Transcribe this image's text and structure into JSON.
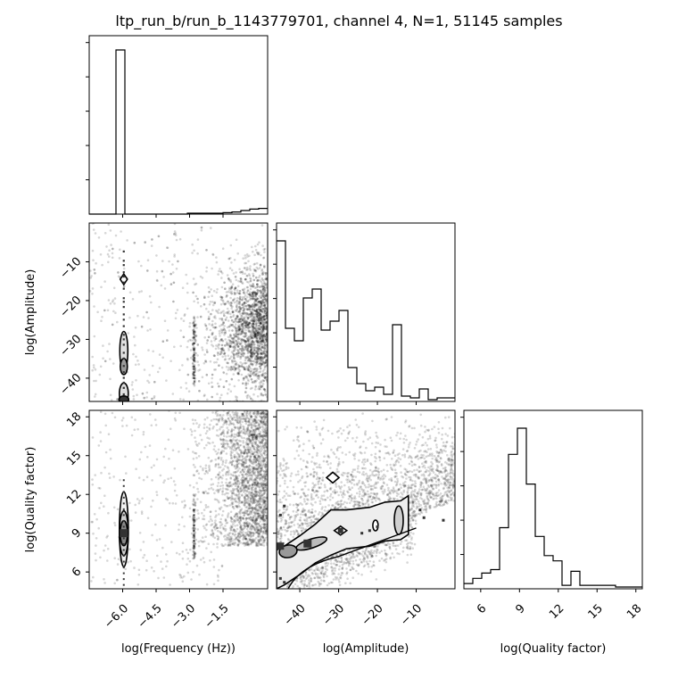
{
  "chart_data": {
    "type": "corner",
    "title": "ltp_run_b/run_b_1143779701, channel 4, N=1, 51145 samples",
    "parameters": [
      {
        "label": "log(Frequency (Hz))",
        "range": [
          -7.5,
          0.5
        ],
        "ticks": [
          -6.0,
          -4.5,
          -3.0,
          -1.5
        ],
        "tick_labels": [
          "−6.0",
          "−4.5",
          "−3.0",
          "−1.5"
        ]
      },
      {
        "label": "log(Amplitude)",
        "range": [
          -46,
          0
        ],
        "ticks": [
          -40,
          -30,
          -20,
          -10
        ],
        "tick_labels": [
          "−40",
          "−30",
          "−20",
          "−10"
        ]
      },
      {
        "label": "log(Quality factor)",
        "range": [
          4.7,
          18.5
        ],
        "ticks": [
          6,
          9,
          12,
          15,
          18
        ],
        "tick_labels": [
          "6",
          "9",
          "12",
          "15",
          "18"
        ]
      }
    ],
    "histograms": [
      {
        "parameter": "log(Frequency (Hz))",
        "bin_edges": [
          -7.5,
          -7.1,
          -6.7,
          -6.3,
          -5.9,
          -5.5,
          -5.1,
          -4.7,
          -4.3,
          -3.9,
          -3.5,
          -3.1,
          -2.7,
          -2.3,
          -1.9,
          -1.5,
          -1.1,
          -0.7,
          -0.3,
          0.1,
          0.5
        ],
        "counts": [
          0,
          0,
          0,
          0.92,
          0,
          0,
          0,
          0,
          0,
          0,
          0,
          0.005,
          0.005,
          0.005,
          0.005,
          0.008,
          0.012,
          0.02,
          0.028,
          0.032
        ]
      },
      {
        "parameter": "log(Amplitude)",
        "bin_edges": [
          -46,
          -43.7,
          -41.4,
          -39.1,
          -36.8,
          -34.5,
          -32.2,
          -29.9,
          -27.6,
          -25.3,
          -23,
          -20.7,
          -18.4,
          -16.1,
          -13.8,
          -11.5,
          -9.2,
          -6.9,
          -4.6,
          -2.3,
          0
        ],
        "counts": [
          0.9,
          0.41,
          0.34,
          0.58,
          0.63,
          0.4,
          0.45,
          0.51,
          0.19,
          0.1,
          0.06,
          0.08,
          0.04,
          0.43,
          0.03,
          0.02,
          0.07,
          0.01,
          0.02,
          0.02
        ]
      },
      {
        "parameter": "log(Quality factor)",
        "bin_edges": [
          4.7,
          5.39,
          6.08,
          6.77,
          7.46,
          8.15,
          8.84,
          9.53,
          10.22,
          10.91,
          11.6,
          12.29,
          12.98,
          13.67,
          14.36,
          15.05,
          15.74,
          16.43,
          17.12,
          17.81,
          18.5
        ],
        "counts": [
          0.03,
          0.06,
          0.09,
          0.11,
          0.35,
          0.77,
          0.92,
          0.6,
          0.3,
          0.19,
          0.16,
          0.02,
          0.1,
          0.02,
          0.02,
          0.02,
          0.02,
          0.01,
          0.01,
          0.01
        ]
      }
    ],
    "scatter_density": [
      {
        "x": "log(Frequency (Hz))",
        "y": "log(Amplitude)",
        "description": "samples concentrated at log(Frequency) near -6.0 with a vertical contour band from about -46 to -14, plus a dense diffuse cloud at log(Frequency) from -2.5 to 0.5 and a thin column near -2.8"
      },
      {
        "x": "log(Frequency (Hz))",
        "y": "log(Quality factor)",
        "description": "contours centered at log(Frequency) near -6.0 and log(Quality factor) near 9, spanning 5 to 12; dense diffuse cloud at log(Frequency) -2.5 to 0.5"
      },
      {
        "x": "log(Amplitude)",
        "y": "log(Quality factor)",
        "description": "rising band of contours from log(Amplitude) -46 to -8 with log(Quality factor) 5 to 11; diffuse cloud above; compact islands near (-31, 13.3), (-29, 9.1) and (-14, 10)"
      }
    ]
  }
}
